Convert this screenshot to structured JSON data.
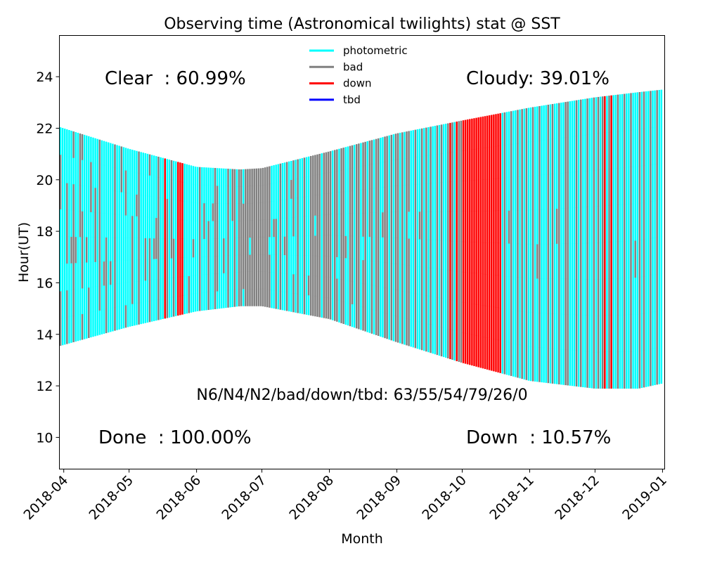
{
  "chart_data": {
    "type": "bar",
    "title": "Observing time (Astronomical twilights) stat @ SST",
    "xlabel": "Month",
    "ylabel": "Hour(UT)",
    "ylim": [
      8.77,
      25.6
    ],
    "xlim": [
      "2018-03-30",
      "2019-01-02"
    ],
    "yticks": [
      10,
      12,
      14,
      16,
      18,
      20,
      22,
      24
    ],
    "xticks": [
      "2018-04",
      "2018-05",
      "2018-06",
      "2018-07",
      "2018-08",
      "2018-09",
      "2018-10",
      "2018-11",
      "2018-12",
      "2019-01"
    ],
    "grid": false,
    "legend": {
      "placement": "top-center",
      "entries": [
        {
          "label": "photometric",
          "color": "#00ffff"
        },
        {
          "label": "bad",
          "color": "#808080"
        },
        {
          "label": "down",
          "color": "#ff0000"
        },
        {
          "label": "tbd",
          "color": "#0000ff"
        }
      ]
    },
    "annotations": {
      "clear": "Clear  : 60.99%",
      "cloudy": "Cloudy: 39.01%",
      "counts": "N6/N4/N2/bad/down/tbd: 63/55/54/79/26/0",
      "done": "Done  : 100.00%",
      "down": "Down  : 10.57%"
    },
    "status_codes": {
      "p": "photometric",
      "b": "bad",
      "d": "down",
      "t": "tbd"
    },
    "twilight": {
      "dates": [
        "2018-03-30",
        "2018-05-01",
        "2018-06-01",
        "2018-06-21",
        "2018-07-01",
        "2018-08-01",
        "2018-09-01",
        "2018-10-01",
        "2018-11-01",
        "2018-12-01",
        "2018-12-21",
        "2019-01-01"
      ],
      "evening_hour": [
        13.55,
        14.3,
        14.9,
        15.1,
        15.1,
        14.6,
        13.7,
        12.9,
        12.2,
        11.9,
        11.9,
        12.1
      ],
      "morning_hour": [
        22.05,
        21.2,
        20.5,
        20.4,
        20.45,
        21.1,
        21.8,
        22.3,
        22.8,
        23.2,
        23.4,
        23.5
      ]
    },
    "first_day": "2018-03-30",
    "daily_status": [
      "bbpppbbp pppppppp",
      "pppppppp bbpbbbpp pppppppp pppbpppp bbbbbbpb pppbpppp pppppppp ppppbbbb bpbbbppb pppppppp pppbpppp bbpppppp pppppbbp pppppppp pppbbbpp pppppppp pbbbbbbb pppppppp ppbppppp bbbbpppp pppppppp ppbppppp pppppppp bbbbbbbb pppppppp pppppppp ppppppbb pppppppp bppppbbp pppppppp",
      "pppppppp pbbbbppp pppppppp pppppbpp bbbbbbbb pppppppp pppppppp ppbbpppp pppppppp bbbbpppb pppppppp pppbpppp pppbbppp bbbbbbbb pppppppp pppppppp dddddddd bbbbbbpp pppppppp pppbbbbb bbbbpppp pppppppp dddddddd dddddddd dddddddd pppppppp pppppppp bbpppppp pppppppp pppbpppp pppppppp",
      "pppppppp bbbbbbbb pppppppp ppppbbpp pppppppp bbbbbppp pppppppp pppppbpp bbbbbbbb pbbbbbbp pppppppp pppppppp ppbbpppp pppppppp bbbbbbbb pppppppp pppppbbb bbbbbbbb pppppppp bbbbbbbb bbbbbbbb pbbbbbpp bbbbbbbb bbbbbbbb bbbpbbbb bbbbbbbb bbbbbbbb bbbbbbbb bbbbbbbb bbbbbbbb",
      "bbbbbbbb bbbbbbbb bbbbbbbb bbbpbbbb pppppppp ppppbppp bbbbbppp pppppppp bbbbbbbb pppppppp pppbpppp bbbbbbbb pppppppp ppppppbp bbppbbbb pppppppp bbbbbbbb pppppppp pppppppp bbbbbbbb pppppppp pbpppppp bbbbbbbb bbbbbbbb bbbbpbbb bbbbbbbb bbbbbbbb pppppppp bbbbbbbb bbbbbbbb bbbbbbbb",
      "bbbbbbbb pppppppp bbbbbbbb bbpbbbbb pppppppp bbbbbbbb bbbbbbbb pppbpppp pppppppp bbbbbbbb pbbbbbbb pppppppp bbbbbbbb bbbbbbbb pppppppp bbbpbbbb bbbbbbbb pppppppp ppppbbbb bbbbbbbb pppppppp bbbbbbbb bbbbbbbb pppppppp ppppbppp bbbbbbbb bbbbbbbb pppppppp bbbbbbbb pppppppp bbbbbbbb",
      "bbbbbbbb pppppppp bbbbbbbb pppppppp bbbbbbbb bbbbpbbb pppppppp pppppppp bbbbbbbb pppppppp ppppbppp bbbbbbbb pppppppp bbbbbbbb pppppppp bbbbbbbb pppppppp pppppppp bbbbbbbb pppppppp bbbbbbbb pppppppp pppppppp bbbbbbbb dddddddd bbbbbbbb pppppppp dddddddd bbbbbbbb bbbbbbbb",
      "dddddddd dddddddd dddddddd dddddddd dddddddd dddddddd dddddddd dddddddd dddddddd dddddddd dddddddd dddddddd dddddddd dddddddd dddddddd dddddddd dddddddd dddddddd pppppppp bbbbbbbb pppppppp ppppbppp bbbbbbbb pppppppp pppppppp bbbbbbbb pppppppp bbbbbbbb pppppppp bbbbbbbb pppppppp",
      "pppppppp bbbbbbbb pppppppp pppbpppp bbbbbbbb pppppppp pppppppp pppppppp bbbbbbbb pppppppp bbbbbbbb pppppppp ppppbppp bbbbbbbb pppppppp pppppppp bbbbbbbb bbbbbbbb pppppppp pppppppp pppppppp bbbbbbbb pppppppp bbbbbbbb pppppppp pppppppp bbbbbbbb pppppppp pppppppp bbbbbbbb",
      "pppppppp bbbbbbbb pppppppp bbbbbbbb dddddddd pppppppp bbbbbbbb dddddddd pppppppp pppppppp bbbbbbbb pppppppp pppppppp bbbbbbbb pppppppp pppppppp bbbbbbbb pppppppp pppbpppp pppppppp bbbbbbbb pppppppp bbbbbbbb pppppppp pppppppp bbbbbbbb pppppppp pppppppp bbbbbbbb pppppppp pppppppp"
    ]
  }
}
